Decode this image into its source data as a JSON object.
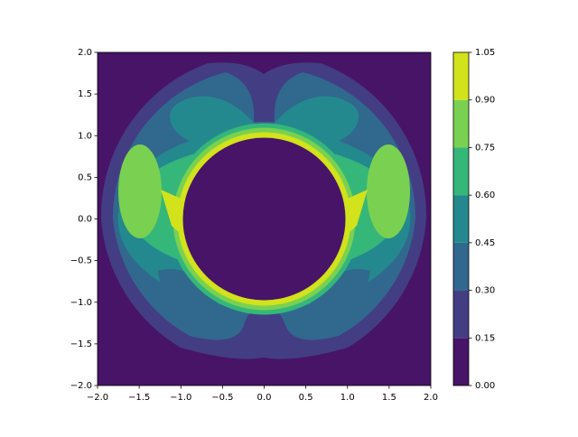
{
  "chart_data": {
    "type": "contour",
    "xlim": [
      -2,
      2
    ],
    "ylim": [
      -2,
      2
    ],
    "xticks": [
      {
        "value": -2,
        "label": "−2.0"
      },
      {
        "value": -1.5,
        "label": "−1.5"
      },
      {
        "value": -1,
        "label": "−1.0"
      },
      {
        "value": -0.5,
        "label": "−0.5"
      },
      {
        "value": 0,
        "label": "0.0"
      },
      {
        "value": 0.5,
        "label": "0.5"
      },
      {
        "value": 1,
        "label": "1.0"
      },
      {
        "value": 1.5,
        "label": "1.5"
      },
      {
        "value": 2,
        "label": "2.0"
      }
    ],
    "yticks": [
      {
        "value": -2,
        "label": "−2.0"
      },
      {
        "value": -1.5,
        "label": "−1.5"
      },
      {
        "value": -1,
        "label": "−1.0"
      },
      {
        "value": -0.5,
        "label": "−0.5"
      },
      {
        "value": 0,
        "label": "0.0"
      },
      {
        "value": 0.5,
        "label": "0.5"
      },
      {
        "value": 1,
        "label": "1.0"
      },
      {
        "value": 1.5,
        "label": "1.5"
      },
      {
        "value": 2,
        "label": "2.0"
      }
    ],
    "levels": [
      {
        "value": 0,
        "label": "0.00"
      },
      {
        "value": 0.15,
        "label": "0.15"
      },
      {
        "value": 0.3,
        "label": "0.30"
      },
      {
        "value": 0.45,
        "label": "0.45"
      },
      {
        "value": 0.6,
        "label": "0.60"
      },
      {
        "value": 0.75,
        "label": "0.75"
      },
      {
        "value": 0.9,
        "label": "0.90"
      },
      {
        "value": 1.05,
        "label": "1.05"
      }
    ],
    "colors": [
      "#471467",
      "#433d84",
      "#31688e",
      "#23898e",
      "#35b779",
      "#7ad151",
      "#d2e21b"
    ]
  }
}
